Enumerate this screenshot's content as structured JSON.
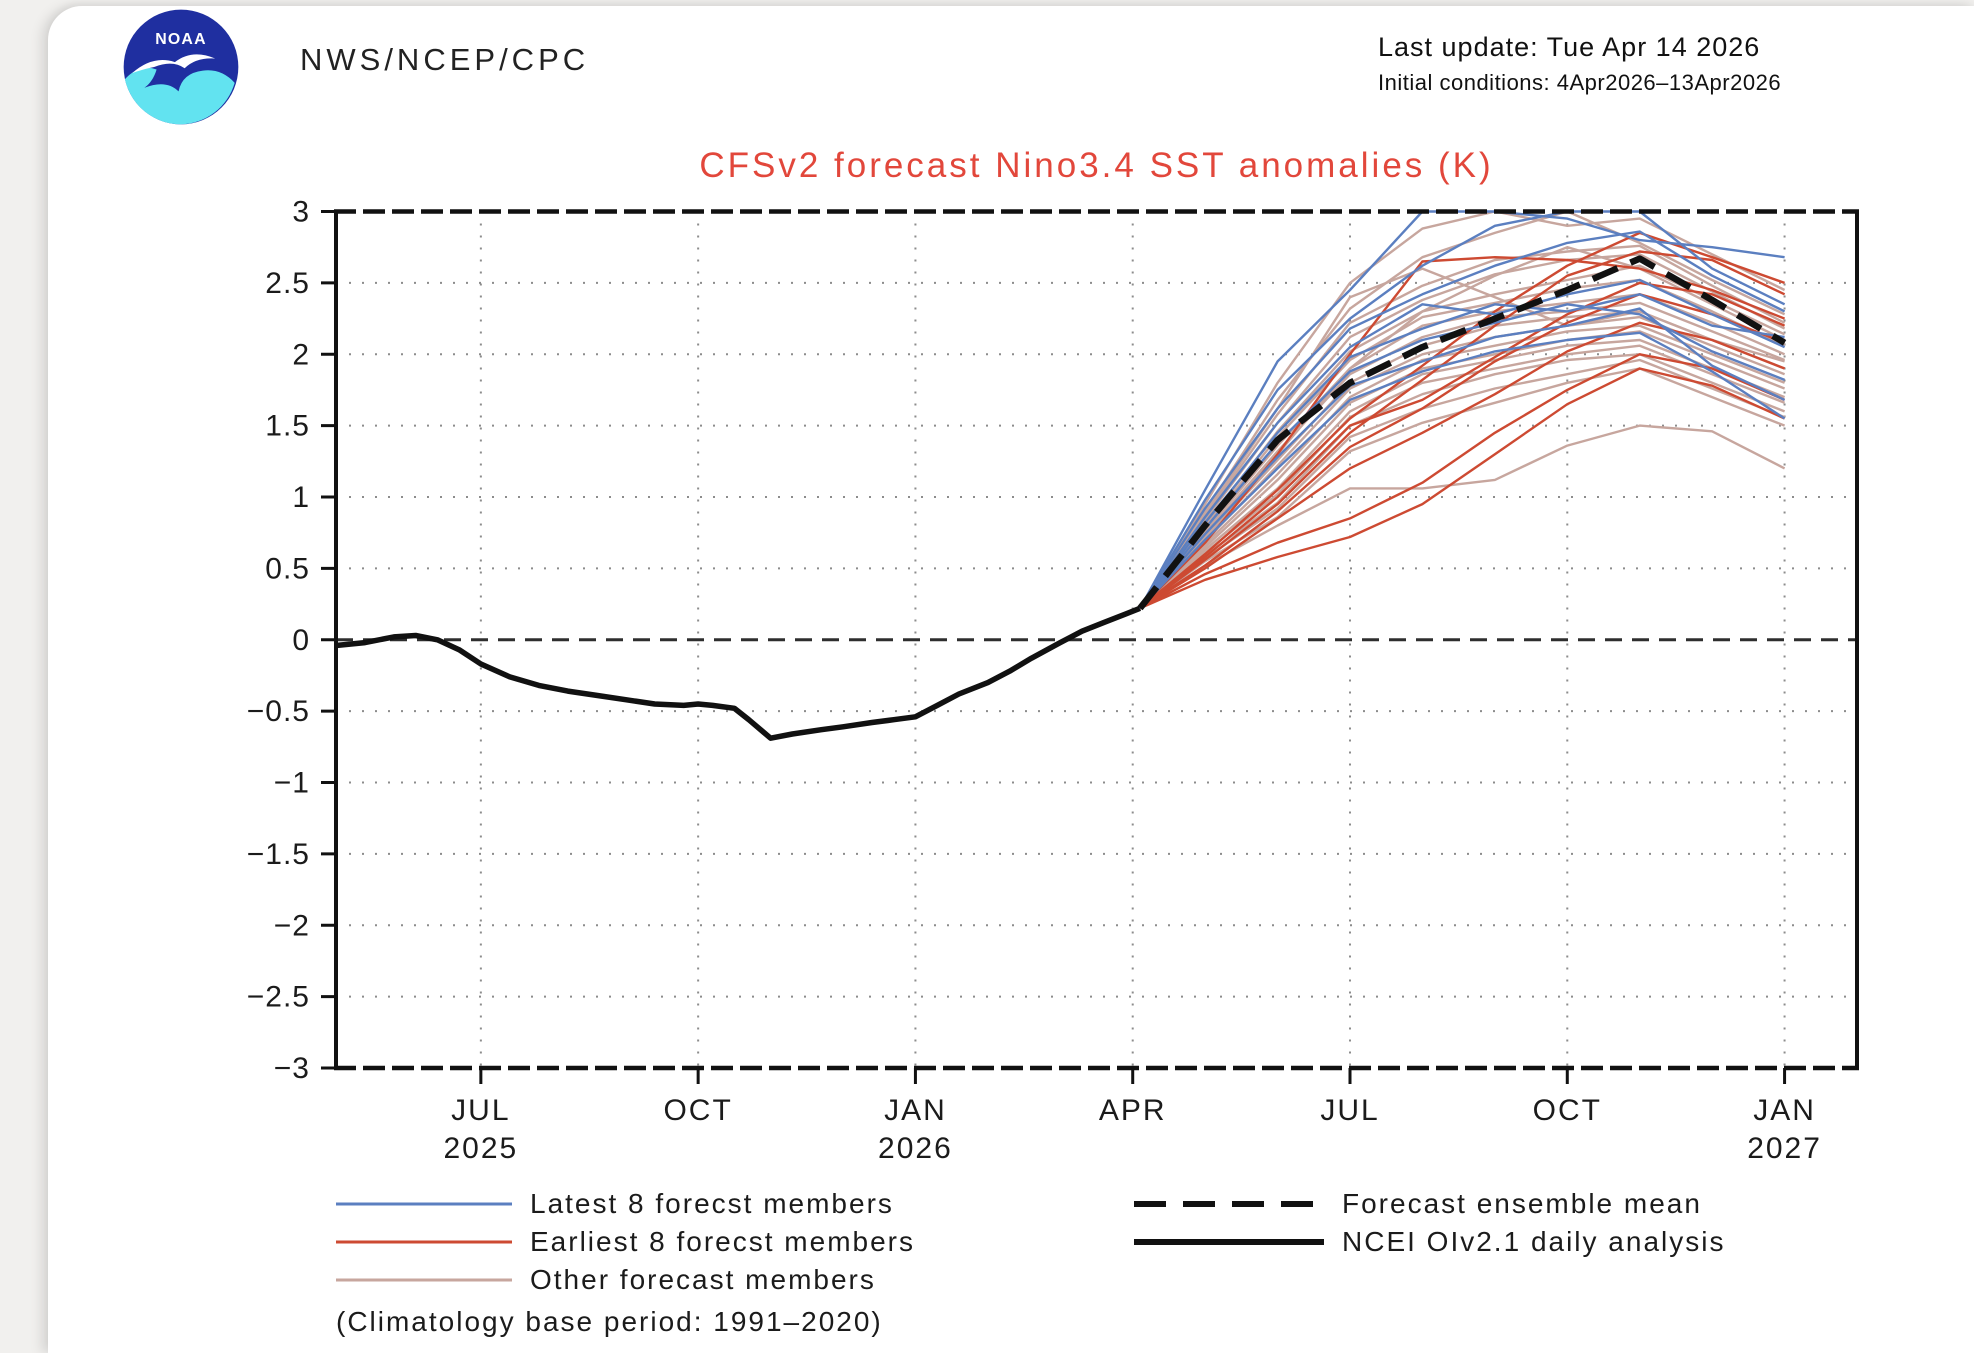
{
  "page": {
    "background": "#f1f0ee",
    "card_background": "#ffffff"
  },
  "header": {
    "org": "NWS/NCEP/CPC",
    "last_update": "Last update: Tue Apr 14 2026",
    "initial_conditions": "Initial conditions: 4Apr2026–13Apr2026",
    "logo": {
      "text": "NOAA",
      "navy": "#1f2fa0",
      "cyan": "#62e3f0"
    }
  },
  "chart_data": {
    "type": "line",
    "title": "CFSv2 forecast Nino3.4 SST anomalies (K)",
    "title_color": "#e2473b",
    "ylabel": "",
    "xlabel": "",
    "ylim": [
      -3,
      3
    ],
    "yticks": [
      3,
      2.5,
      2,
      1.5,
      1,
      0.5,
      0,
      -0.5,
      -1,
      -1.5,
      -2,
      -2.5,
      -3
    ],
    "x_domain_months": 21,
    "x_domain_note": "months from May 2025 (0) to Feb 2027 (21)",
    "xticks": [
      {
        "m": 2,
        "label": "JUL",
        "year": "2025"
      },
      {
        "m": 5,
        "label": "OCT",
        "year": ""
      },
      {
        "m": 8,
        "label": "JAN",
        "year": "2026"
      },
      {
        "m": 11,
        "label": "APR",
        "year": ""
      },
      {
        "m": 14,
        "label": "JUL",
        "year": ""
      },
      {
        "m": 17,
        "label": "OCT",
        "year": ""
      },
      {
        "m": 20,
        "label": "JAN",
        "year": "2027"
      }
    ],
    "grid": true,
    "grid_color": "#8c8c8c",
    "axis_color": "#111111",
    "zero_line": true,
    "clip_max": 3.0,
    "legend_position": "bottom",
    "legend_note": "(Climatology base period: 1991–2020)",
    "observed": {
      "name": "NCEI OIv2.1 daily analysis",
      "color": "#111111",
      "points": [
        [
          0,
          -0.04
        ],
        [
          0.4,
          -0.02
        ],
        [
          0.8,
          0.02
        ],
        [
          1.1,
          0.03
        ],
        [
          1.4,
          0.0
        ],
        [
          1.7,
          -0.07
        ],
        [
          2.0,
          -0.17
        ],
        [
          2.4,
          -0.26
        ],
        [
          2.8,
          -0.32
        ],
        [
          3.2,
          -0.36
        ],
        [
          3.6,
          -0.39
        ],
        [
          4.0,
          -0.42
        ],
        [
          4.4,
          -0.45
        ],
        [
          4.8,
          -0.46
        ],
        [
          5.0,
          -0.45
        ],
        [
          5.2,
          -0.46
        ],
        [
          5.5,
          -0.48
        ],
        [
          5.7,
          -0.56
        ],
        [
          6.0,
          -0.69
        ],
        [
          6.3,
          -0.66
        ],
        [
          6.7,
          -0.63
        ],
        [
          7.0,
          -0.61
        ],
        [
          7.4,
          -0.58
        ],
        [
          7.7,
          -0.56
        ],
        [
          8.0,
          -0.54
        ],
        [
          8.3,
          -0.46
        ],
        [
          8.6,
          -0.38
        ],
        [
          9.0,
          -0.3
        ],
        [
          9.3,
          -0.22
        ],
        [
          9.6,
          -0.13
        ],
        [
          10.0,
          -0.02
        ],
        [
          10.3,
          0.06
        ],
        [
          10.6,
          0.12
        ],
        [
          10.9,
          0.18
        ],
        [
          11.1,
          0.22
        ]
      ]
    },
    "ensemble_mean": {
      "name": "Forecast ensemble mean",
      "color": "#111111",
      "points": [
        [
          11.1,
          0.22
        ],
        [
          12,
          0.8
        ],
        [
          13,
          1.4
        ],
        [
          14,
          1.8
        ],
        [
          15,
          2.05
        ],
        [
          16,
          2.25
        ],
        [
          17,
          2.45
        ],
        [
          18,
          2.67
        ],
        [
          19,
          2.38
        ],
        [
          20,
          2.08
        ]
      ]
    },
    "member_x": [
      11.1,
      12,
      13,
      14,
      15,
      16,
      17,
      18,
      19,
      20
    ],
    "groups": [
      {
        "name": "Latest 8 forecst members",
        "color": "#5b7fc0",
        "members": [
          [
            0.22,
            1.05,
            1.95,
            2.45,
            3.0,
            3.1,
            2.95,
            2.8,
            2.75,
            2.68
          ],
          [
            0.22,
            0.98,
            1.75,
            2.25,
            2.62,
            2.9,
            3.08,
            3.02,
            2.6,
            2.35
          ],
          [
            0.22,
            0.92,
            1.62,
            2.18,
            2.42,
            2.62,
            2.78,
            2.86,
            2.55,
            2.3
          ],
          [
            0.22,
            0.86,
            1.52,
            2.05,
            2.35,
            2.28,
            2.42,
            2.52,
            2.28,
            2.05
          ],
          [
            0.22,
            0.82,
            1.45,
            1.98,
            2.18,
            2.35,
            2.3,
            2.42,
            2.2,
            2.12
          ],
          [
            0.22,
            0.78,
            1.38,
            1.88,
            2.1,
            2.22,
            2.35,
            2.28,
            2.02,
            1.82
          ],
          [
            0.22,
            0.74,
            1.28,
            1.78,
            1.95,
            2.12,
            2.2,
            2.32,
            1.92,
            1.68
          ],
          [
            0.22,
            0.7,
            1.2,
            1.68,
            1.88,
            2.02,
            2.1,
            2.15,
            1.88,
            1.55
          ]
        ]
      },
      {
        "name": "Earliest 8 forecst members",
        "color": "#cd4a32",
        "members": [
          [
            0.22,
            0.6,
            1.05,
            1.55,
            1.92,
            2.3,
            2.62,
            2.85,
            2.68,
            2.5
          ],
          [
            0.22,
            0.56,
            0.95,
            1.45,
            1.82,
            2.2,
            2.55,
            2.72,
            2.66,
            2.42
          ],
          [
            0.22,
            0.58,
            1.0,
            1.5,
            1.68,
            1.98,
            2.28,
            2.5,
            2.42,
            2.2
          ],
          [
            0.22,
            0.52,
            0.9,
            1.35,
            1.62,
            1.95,
            2.22,
            2.42,
            2.28,
            2.08
          ],
          [
            0.22,
            0.68,
            1.3,
            2.0,
            2.65,
            2.68,
            2.66,
            2.6,
            2.45,
            2.25
          ],
          [
            0.22,
            0.5,
            0.85,
            1.2,
            1.45,
            1.72,
            2.02,
            2.22,
            2.1,
            1.9
          ],
          [
            0.22,
            0.46,
            0.68,
            0.85,
            1.1,
            1.45,
            1.75,
            2.0,
            1.9,
            1.68
          ],
          [
            0.22,
            0.42,
            0.58,
            0.72,
            0.95,
            1.3,
            1.65,
            1.9,
            1.78,
            1.55
          ]
        ]
      },
      {
        "name": "Other forecast members",
        "color": "#c7a69e",
        "members": [
          [
            0.22,
            0.95,
            1.8,
            2.5,
            2.88,
            3.05,
            2.9,
            2.95,
            2.7,
            2.45
          ],
          [
            0.22,
            0.9,
            1.68,
            2.32,
            2.68,
            2.85,
            3.0,
            2.78,
            2.52,
            2.28
          ],
          [
            0.22,
            0.86,
            1.58,
            2.22,
            2.48,
            2.66,
            2.72,
            2.76,
            2.48,
            2.22
          ],
          [
            0.22,
            0.84,
            1.52,
            2.12,
            2.38,
            2.56,
            2.66,
            2.7,
            2.44,
            2.18
          ],
          [
            0.22,
            0.8,
            1.46,
            2.02,
            2.3,
            2.42,
            2.52,
            2.62,
            2.38,
            2.14
          ],
          [
            0.22,
            0.78,
            1.42,
            1.96,
            2.26,
            2.36,
            2.46,
            2.52,
            2.3,
            2.06
          ],
          [
            0.22,
            0.76,
            1.36,
            1.9,
            2.2,
            2.3,
            2.36,
            2.42,
            2.22,
            2.0
          ],
          [
            0.22,
            0.74,
            1.32,
            1.86,
            2.12,
            2.26,
            2.3,
            2.36,
            2.16,
            1.96
          ],
          [
            0.22,
            0.71,
            1.26,
            1.8,
            2.06,
            2.2,
            2.26,
            2.3,
            2.1,
            1.9
          ],
          [
            0.22,
            0.69,
            1.22,
            1.76,
            2.0,
            2.12,
            2.2,
            2.26,
            2.06,
            1.86
          ],
          [
            0.22,
            0.67,
            1.16,
            1.7,
            1.96,
            2.06,
            2.16,
            2.2,
            2.0,
            1.8
          ],
          [
            0.22,
            0.65,
            1.12,
            1.66,
            1.9,
            2.0,
            2.1,
            2.16,
            1.96,
            1.76
          ],
          [
            0.22,
            0.63,
            1.06,
            1.6,
            1.86,
            1.96,
            2.06,
            2.1,
            1.9,
            1.7
          ],
          [
            0.22,
            0.61,
            1.02,
            1.56,
            1.8,
            1.9,
            2.0,
            2.06,
            1.86,
            1.66
          ],
          [
            0.22,
            0.59,
            0.96,
            1.5,
            1.72,
            1.86,
            1.96,
            2.0,
            1.8,
            1.6
          ],
          [
            0.22,
            0.57,
            0.92,
            1.42,
            1.62,
            1.76,
            1.86,
            1.96,
            1.76,
            1.56
          ],
          [
            0.22,
            0.55,
            0.86,
            1.32,
            1.52,
            1.66,
            1.8,
            1.9,
            1.7,
            1.5
          ],
          [
            0.22,
            0.52,
            0.8,
            1.06,
            1.06,
            1.12,
            1.36,
            1.5,
            1.46,
            1.2
          ],
          [
            0.22,
            0.88,
            1.62,
            2.4,
            2.6,
            2.4,
            2.2,
            2.3,
            2.1,
            1.95
          ],
          [
            0.22,
            0.72,
            1.3,
            1.9,
            2.3,
            2.55,
            2.75,
            2.6,
            2.35,
            2.1
          ]
        ]
      }
    ]
  }
}
